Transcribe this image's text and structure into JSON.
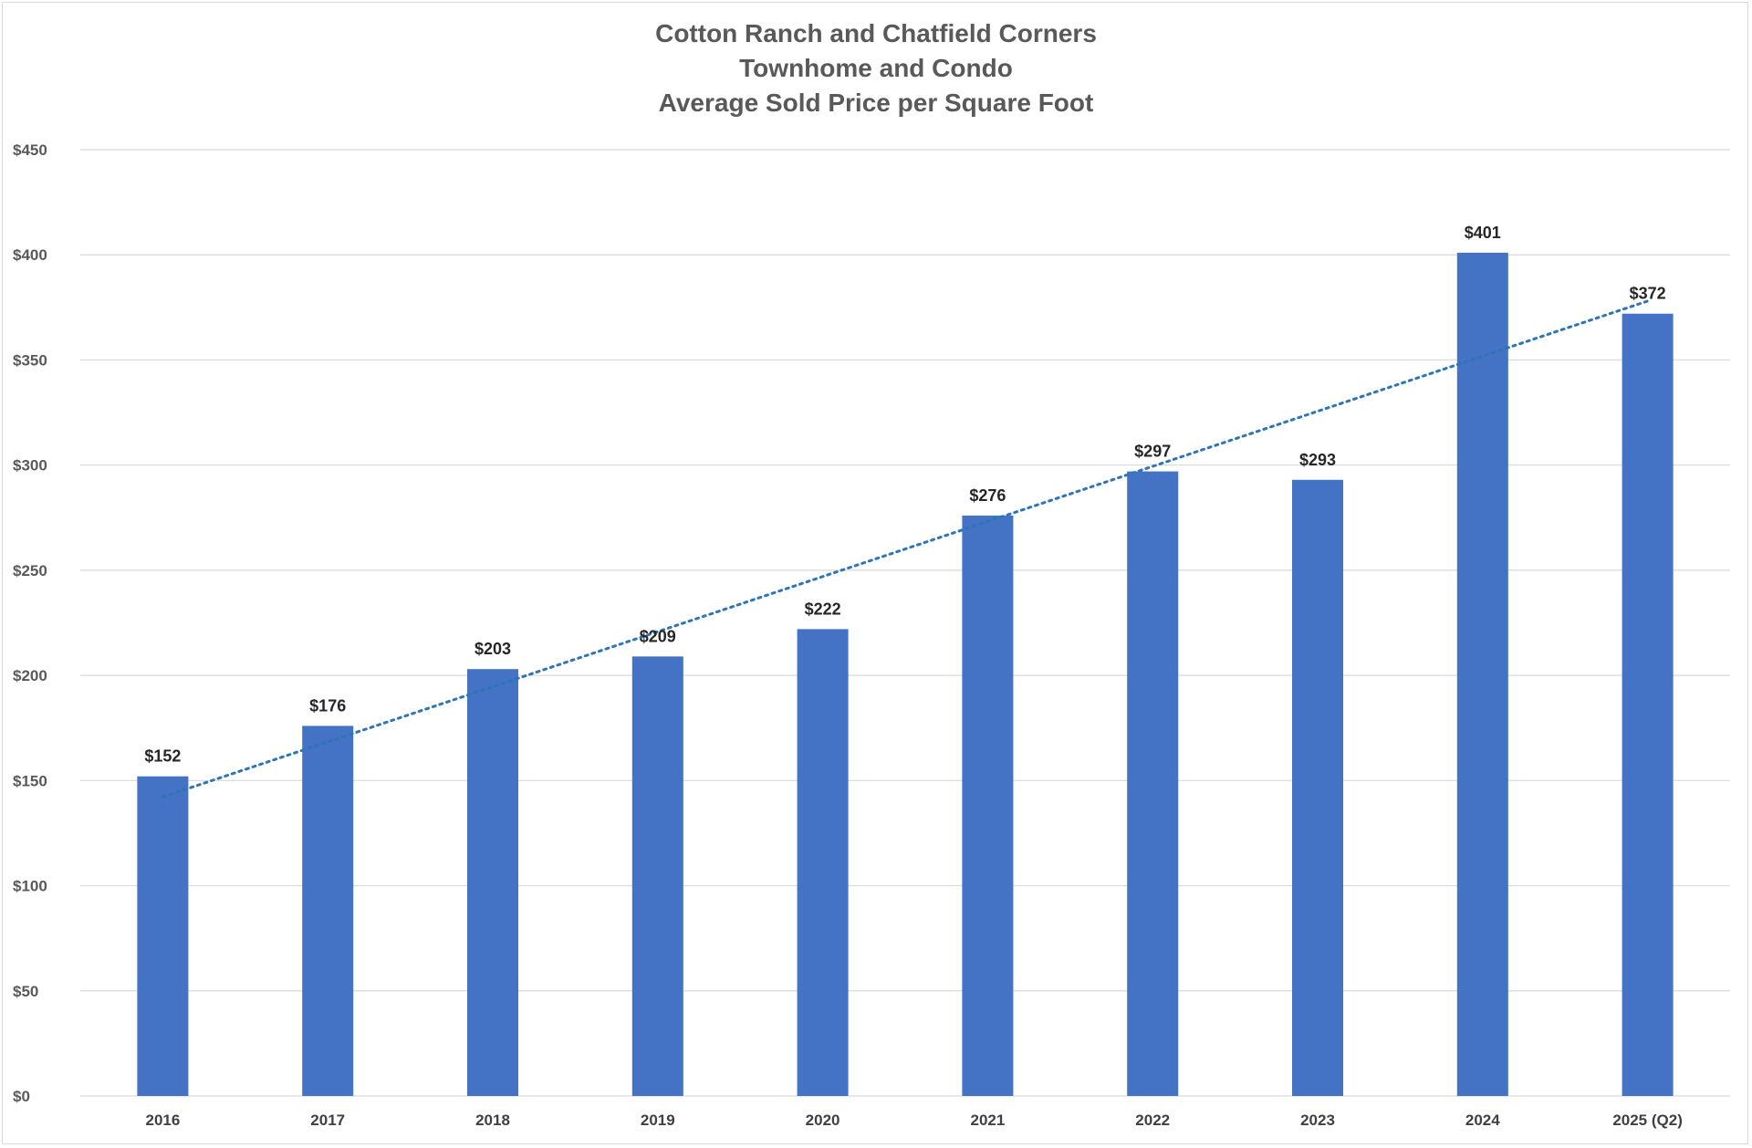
{
  "chart_data": {
    "type": "bar",
    "title": "Cotton Ranch and Chatfield Corners",
    "subtitle_lines": [
      "Townhome and Condo",
      "Average Sold Price per Square Foot"
    ],
    "categories": [
      "2016",
      "2017",
      "2018",
      "2019",
      "2020",
      "2021",
      "2022",
      "2023",
      "2024",
      "2025 (Q2)"
    ],
    "values": [
      152,
      176,
      203,
      209,
      222,
      276,
      297,
      293,
      401,
      372
    ],
    "data_labels": [
      "$152",
      "$176",
      "$203",
      "$209",
      "$222",
      "$276",
      "$297",
      "$293",
      "$401",
      "$372"
    ],
    "ylim": [
      0,
      450
    ],
    "yticks": [
      0,
      50,
      100,
      150,
      200,
      250,
      300,
      350,
      400,
      450
    ],
    "ytick_labels": [
      "$0",
      "$50",
      "$100",
      "$150",
      "$200",
      "$250",
      "$300",
      "$350",
      "$400",
      "$450"
    ],
    "grid": true,
    "trendline": {
      "type": "linear",
      "style": "dotted"
    },
    "colors": {
      "bar": "#4472C4",
      "trendline": "#2E75B6",
      "grid": "#d9d9d9",
      "title": "#595959"
    }
  }
}
